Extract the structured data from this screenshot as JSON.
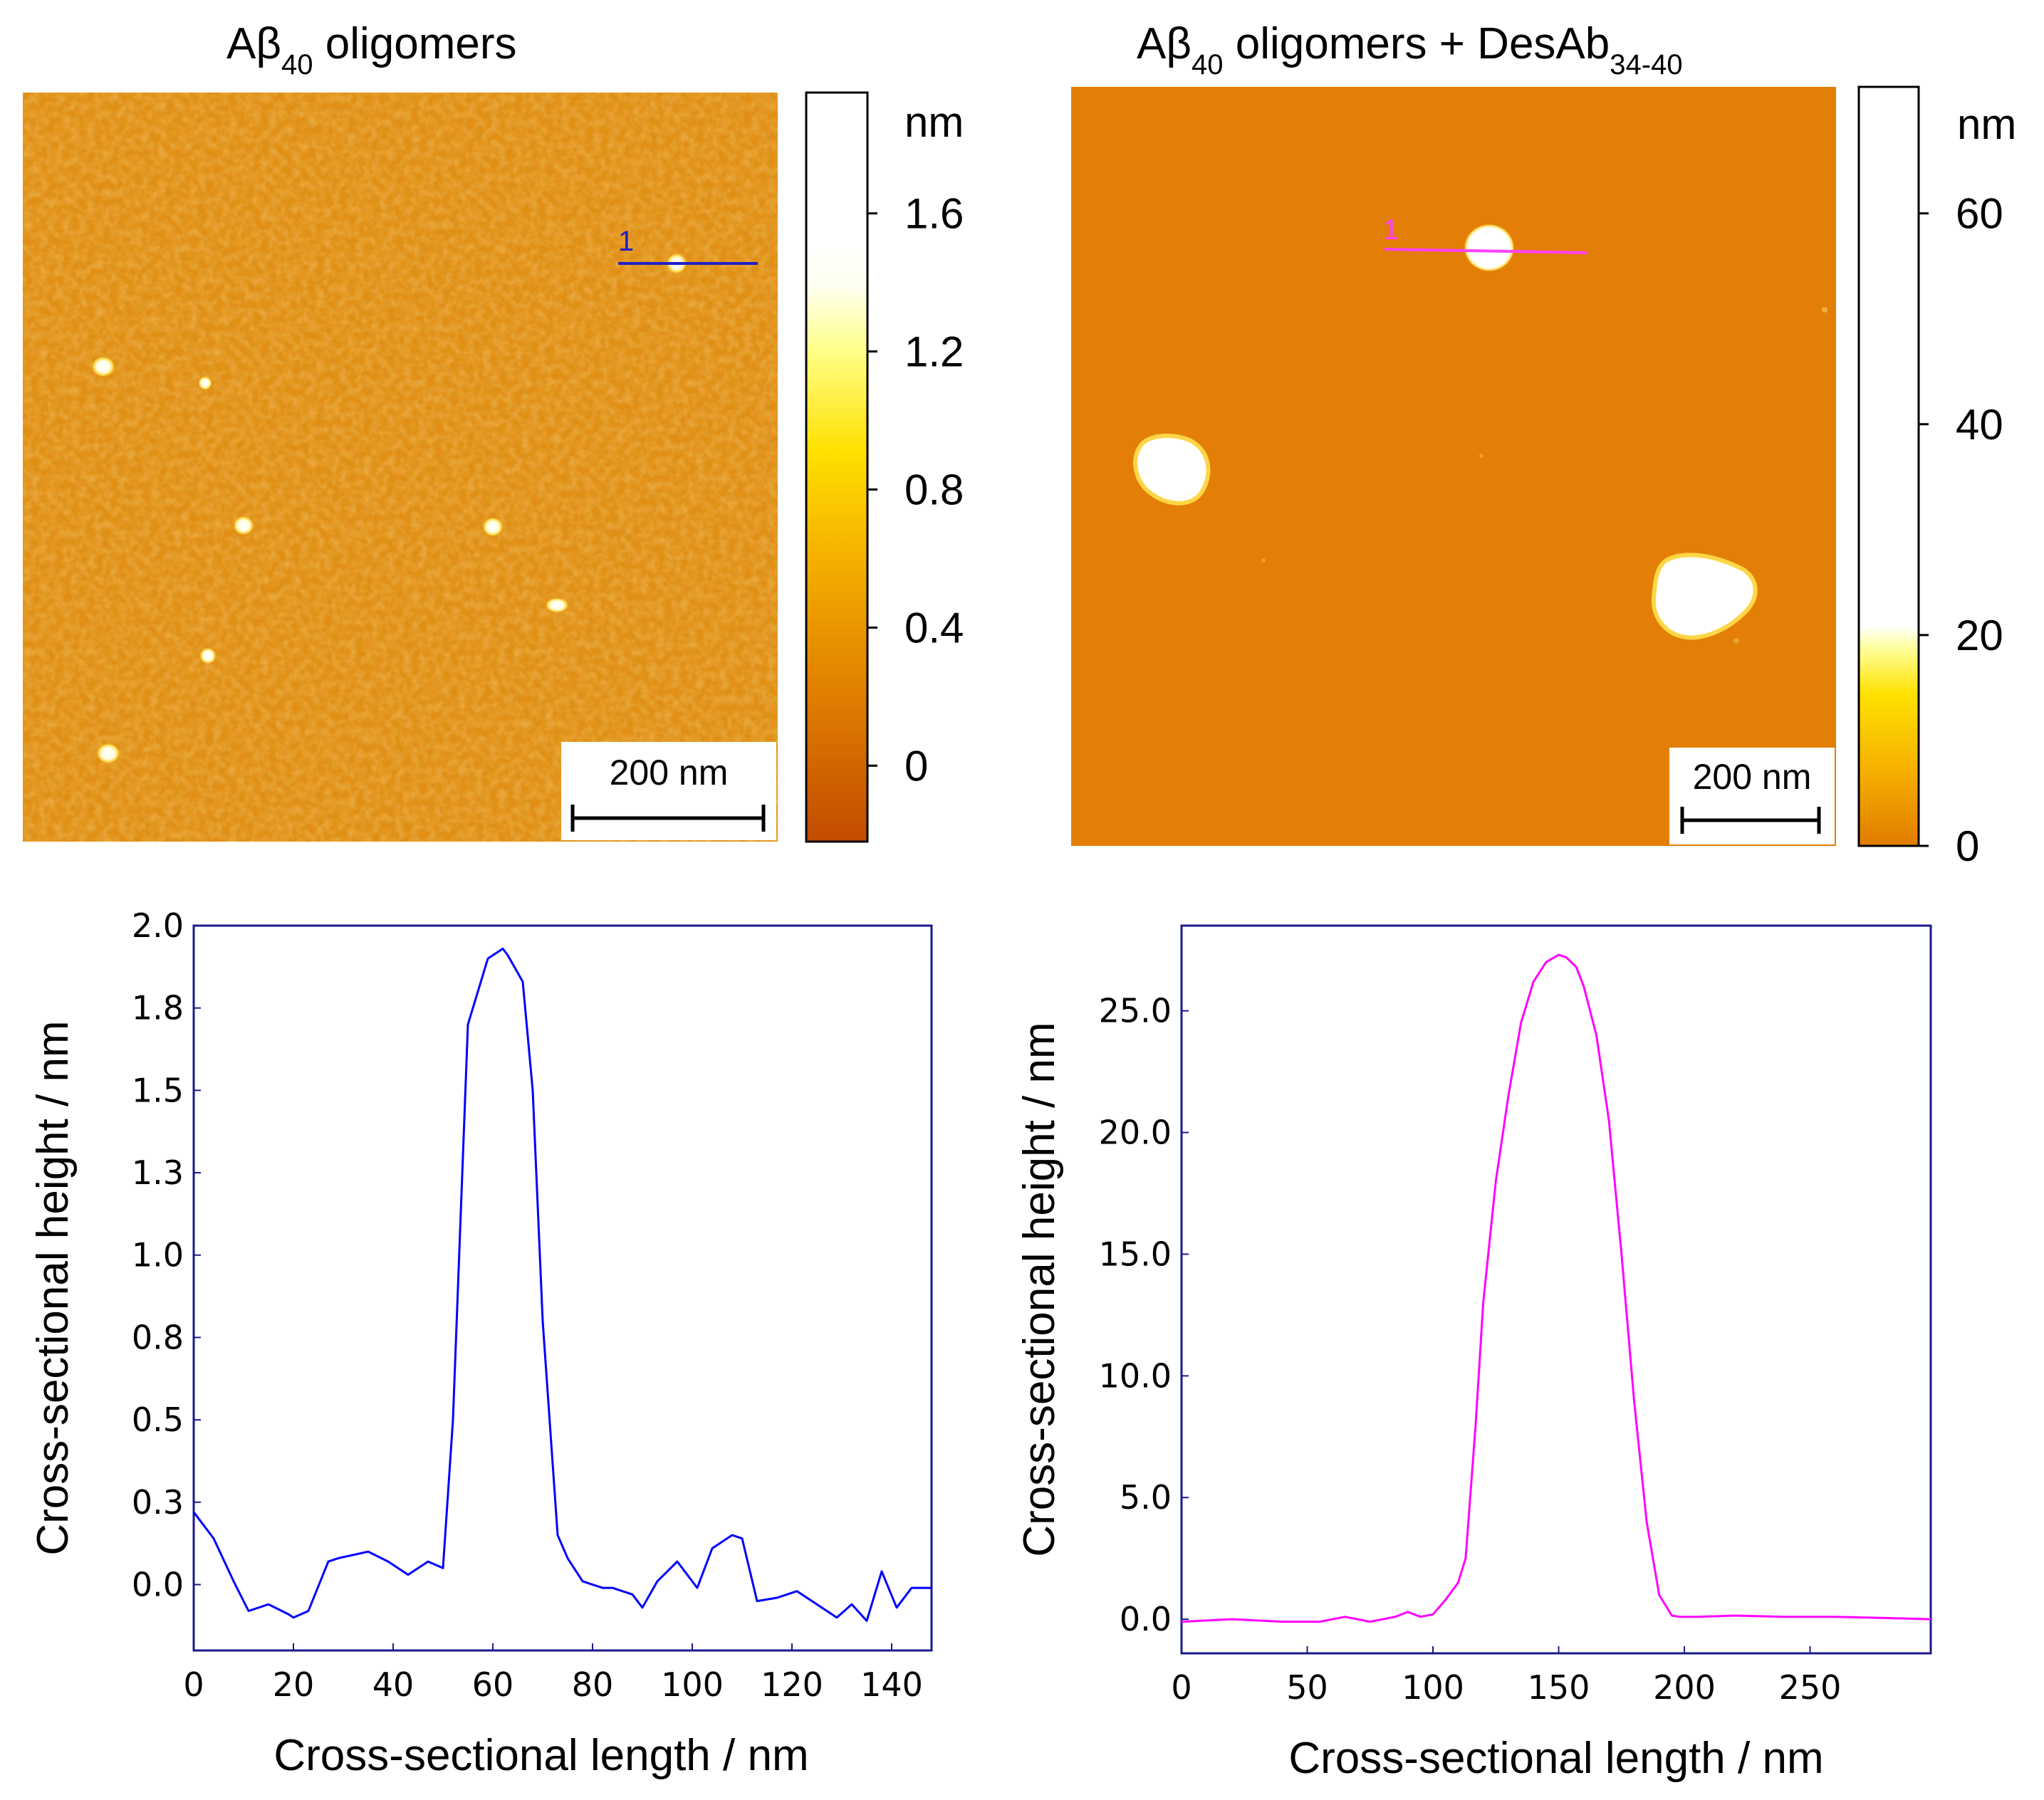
{
  "panels": [
    {
      "title_main": "Aβ",
      "title_sub": "40",
      "title_rest": " oligomers",
      "title_sub2": "",
      "scale_bar_label": "200 nm",
      "profile_label": "1",
      "colorbar": {
        "unit": "nm",
        "ticks": [
          "1.6",
          "1.2",
          "0.8",
          "0.4",
          "0"
        ],
        "tick_values": [
          1.6,
          1.2,
          0.8,
          0.4,
          0
        ],
        "range": [
          -0.22,
          1.95
        ]
      }
    },
    {
      "title_main": "Aβ",
      "title_sub": "40",
      "title_rest": " oligomers + DesAb",
      "title_sub2": "34-40",
      "scale_bar_label": "200 nm",
      "profile_label": "1",
      "colorbar": {
        "unit": "nm",
        "ticks": [
          "60",
          "40",
          "20",
          "0"
        ],
        "tick_values": [
          60,
          40,
          20,
          0
        ],
        "range": [
          0,
          72
        ]
      }
    }
  ],
  "chart_data": [
    {
      "type": "line",
      "title": "",
      "xlabel": "Cross-sectional length / nm",
      "ylabel": "Cross-sectional height / nm",
      "xlim": [
        0,
        148
      ],
      "ylim": [
        -0.2,
        2.0
      ],
      "xticks": [
        "0",
        "20",
        "40",
        "60",
        "80",
        "100",
        "120",
        "140"
      ],
      "xtick_values": [
        0,
        20,
        40,
        60,
        80,
        100,
        120,
        140
      ],
      "yticks": [
        "2.0",
        "1.8",
        "1.5",
        "1.3",
        "1.0",
        "0.8",
        "0.5",
        "0.3",
        "0.0"
      ],
      "ytick_values": [
        2.0,
        1.75,
        1.5,
        1.25,
        1.0,
        0.75,
        0.5,
        0.25,
        0.0
      ],
      "color": "#0000ff",
      "x": [
        0,
        4,
        8,
        11,
        15,
        19,
        20,
        23,
        27,
        29,
        32,
        35,
        39,
        43,
        47,
        50,
        52,
        55,
        59,
        62,
        63,
        66,
        68,
        70,
        73,
        75,
        78,
        82,
        84,
        88,
        90,
        93,
        97,
        101,
        104,
        108,
        110,
        113,
        117,
        121,
        125,
        129,
        132,
        135,
        138,
        141,
        144,
        148
      ],
      "y": [
        0.22,
        0.14,
        0.01,
        -0.08,
        -0.06,
        -0.09,
        -0.1,
        -0.08,
        0.07,
        0.08,
        0.09,
        0.1,
        0.07,
        0.03,
        0.07,
        0.05,
        0.5,
        1.7,
        1.9,
        1.93,
        1.91,
        1.83,
        1.5,
        0.8,
        0.15,
        0.08,
        0.01,
        -0.01,
        -0.01,
        -0.03,
        -0.07,
        0.01,
        0.07,
        -0.01,
        0.11,
        0.15,
        0.14,
        -0.05,
        -0.04,
        -0.02,
        -0.06,
        -0.1,
        -0.06,
        -0.11,
        0.04,
        -0.07,
        -0.01,
        -0.01
      ]
    },
    {
      "type": "line",
      "title": "",
      "xlabel": "Cross-sectional length / nm",
      "ylabel": "Cross-sectional height / nm",
      "xlim": [
        0,
        298
      ],
      "ylim": [
        -1.4,
        28.5
      ],
      "xticks": [
        "0",
        "50",
        "100",
        "150",
        "200",
        "250"
      ],
      "xtick_values": [
        0,
        50,
        100,
        150,
        200,
        250
      ],
      "yticks": [
        "25.0",
        "20.0",
        "15.0",
        "10.0",
        "5.0",
        "0.0"
      ],
      "ytick_values": [
        25,
        20,
        15,
        10,
        5,
        0
      ],
      "color": "#ff00ff",
      "x": [
        0,
        20,
        40,
        55,
        65,
        75,
        85,
        90,
        95,
        100,
        105,
        110,
        113,
        117,
        120,
        125,
        130,
        135,
        140,
        145,
        150,
        153,
        157,
        160,
        165,
        170,
        175,
        180,
        185,
        190,
        195,
        198,
        205,
        220,
        240,
        260,
        280,
        298
      ],
      "y": [
        -0.1,
        0.0,
        -0.1,
        -0.1,
        0.1,
        -0.1,
        0.1,
        0.3,
        0.1,
        0.2,
        0.8,
        1.5,
        2.5,
        8.0,
        13.0,
        18.0,
        21.5,
        24.5,
        26.2,
        27.0,
        27.3,
        27.2,
        26.8,
        26.0,
        24.0,
        20.5,
        15.0,
        9.0,
        4.0,
        1.0,
        0.15,
        0.1,
        0.1,
        0.15,
        0.1,
        0.1,
        0.05,
        0.0
      ]
    }
  ]
}
